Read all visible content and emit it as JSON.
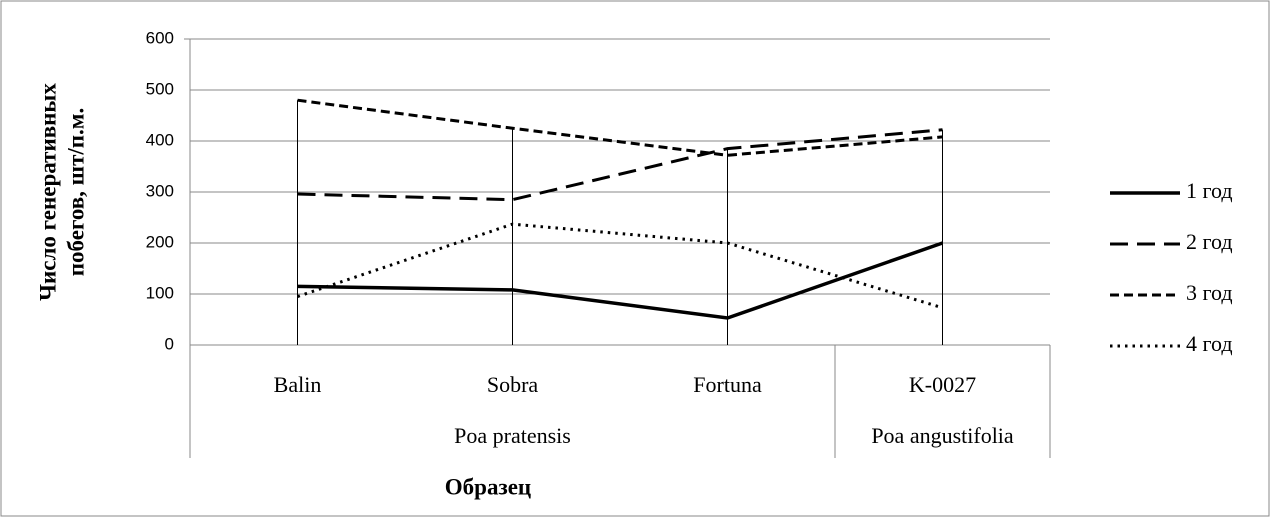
{
  "chart_data": {
    "type": "line",
    "ylabel": [
      "Число генеративных",
      "побегов, шт/п.м."
    ],
    "xlabel": "Образец",
    "categories": [
      "Balin",
      "Sobra",
      "Fortuna",
      "K-0027"
    ],
    "groups": [
      {
        "label": "Poa pratensis",
        "span": 3
      },
      {
        "label": "Poa angustifolia",
        "span": 1
      }
    ],
    "series": [
      {
        "name": "1 год",
        "color": "#000000",
        "dash": "solid",
        "values": [
          115,
          108,
          53,
          200
        ]
      },
      {
        "name": "2 год",
        "color": "#000000",
        "dash": "long",
        "values": [
          296,
          285,
          385,
          422
        ]
      },
      {
        "name": "3 год",
        "color": "#000000",
        "dash": "short",
        "values": [
          480,
          425,
          372,
          408
        ]
      },
      {
        "name": "4 год",
        "color": "#000000",
        "dash": "dotted",
        "values": [
          95,
          237,
          200,
          73
        ]
      }
    ],
    "ylim": [
      0,
      600
    ],
    "yticks": [
      0,
      100,
      200,
      300,
      400,
      500,
      600
    ],
    "grid": true,
    "drop_lines": true,
    "legend": "right"
  }
}
